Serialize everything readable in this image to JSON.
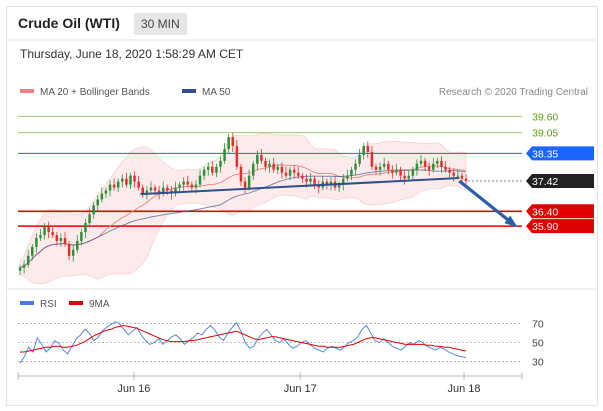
{
  "header": {
    "title": "Crude Oil (WTI)",
    "timeframe": "30 MIN",
    "datetime": "Thursday, June 18, 2020 1:58:29 AM CET"
  },
  "chart_data": {
    "type": "candlestick",
    "main": {
      "legend": [
        {
          "name": "MA 20 + Bollinger Bands",
          "color": "#f08080"
        },
        {
          "name": "MA 50",
          "color": "#2f4f8f"
        }
      ],
      "credit": "Research © 2020 Trading Central",
      "ylim": [
        33.95,
        40.15
      ],
      "levels": [
        {
          "value": 39.6,
          "label": "39.60",
          "color": "#9acd6a",
          "text_color": "#5a9e1a",
          "badge": false
        },
        {
          "value": 39.05,
          "label": "39.05",
          "color": "#9acd6a",
          "text_color": "#5a9e1a",
          "badge": false
        },
        {
          "value": 38.35,
          "label": "38.35",
          "color": "#1a66ff",
          "text_color": "#ffffff",
          "badge": true
        },
        {
          "value": 36.4,
          "label": "36.40",
          "color": "#e00000",
          "text_color": "#ffffff",
          "badge": true
        },
        {
          "value": 35.9,
          "label": "35.90",
          "color": "#e00000",
          "text_color": "#ffffff",
          "badge": true
        }
      ],
      "last_price": {
        "value": 37.42,
        "label": "37.42"
      },
      "trendline": [
        [
          0.27,
          36.98
        ],
        [
          0.985,
          37.52
        ]
      ],
      "forecast_arrow": [
        [
          0.985,
          37.42
        ],
        [
          1.11,
          35.92
        ]
      ],
      "close": [
        34.5,
        34.6,
        34.9,
        35.2,
        35.5,
        35.6,
        35.9,
        35.7,
        35.6,
        35.4,
        35.5,
        35.3,
        34.9,
        35.1,
        35.4,
        35.7,
        36.0,
        36.3,
        36.6,
        36.8,
        37.0,
        37.1,
        37.3,
        37.2,
        37.4,
        37.5,
        37.3,
        37.6,
        37.4,
        37.2,
        37.0,
        37.1,
        37.2,
        37.1,
        37.0,
        37.2,
        37.1,
        37.0,
        37.2,
        37.3,
        37.4,
        37.3,
        37.2,
        37.3,
        37.6,
        37.8,
        37.9,
        37.7,
        37.9,
        38.1,
        38.5,
        38.9,
        38.6,
        37.9,
        37.4,
        37.2,
        37.6,
        38.0,
        38.3,
        38.1,
        37.9,
        38.0,
        37.8,
        37.9,
        37.7,
        37.6,
        37.8,
        37.7,
        37.6,
        37.5,
        37.4,
        37.5,
        37.3,
        37.2,
        37.4,
        37.3,
        37.4,
        37.2,
        37.3,
        37.5,
        37.6,
        37.8,
        38.0,
        38.3,
        38.6,
        38.4,
        37.9,
        37.8,
        37.9,
        38.0,
        37.8,
        37.7,
        37.8,
        37.6,
        37.5,
        37.6,
        37.8,
        38.0,
        38.1,
        37.9,
        37.8,
        38.0,
        38.1,
        37.9,
        37.8,
        37.7,
        37.6,
        37.6,
        37.5,
        37.42
      ]
    },
    "rsi": {
      "legend": [
        {
          "name": "RSI",
          "color": "#4a7adf"
        },
        {
          "name": "9MA",
          "color": "#e00000"
        }
      ],
      "ylim": [
        22,
        78
      ],
      "ticks": [
        70,
        50,
        30
      ],
      "rsi": [
        28,
        35,
        45,
        40,
        55,
        48,
        40,
        44,
        52,
        49,
        42,
        38,
        46,
        54,
        58,
        64,
        60,
        52,
        55,
        62,
        66,
        69,
        72,
        70,
        64,
        58,
        62,
        66,
        58,
        52,
        48,
        50,
        54,
        48,
        52,
        56,
        58,
        54,
        48,
        52,
        55,
        60,
        58,
        64,
        68,
        63,
        56,
        52,
        60,
        66,
        71,
        62,
        50,
        44,
        46,
        54,
        60,
        64,
        58,
        52,
        50,
        54,
        48,
        44,
        46,
        50,
        52,
        48,
        44,
        42,
        40,
        44,
        46,
        44,
        42,
        46,
        50,
        52,
        56,
        64,
        68,
        60,
        52,
        50,
        54,
        50,
        46,
        44,
        42,
        46,
        50,
        48,
        52,
        50,
        46,
        44,
        42,
        45,
        43,
        40,
        38,
        36,
        35,
        34
      ],
      "ma9": [
        40,
        40,
        41,
        42,
        43,
        44,
        45,
        45,
        46,
        46,
        45,
        45,
        46,
        47,
        49,
        51,
        54,
        57,
        59,
        61,
        63,
        64,
        66,
        67,
        68,
        67,
        66,
        65,
        63,
        61,
        59,
        57,
        55,
        53,
        52,
        51,
        51,
        51,
        51,
        52,
        52,
        53,
        54,
        55,
        56,
        57,
        58,
        59,
        60,
        61,
        62,
        60,
        58,
        56,
        54,
        53,
        54,
        55,
        56,
        56,
        55,
        54,
        53,
        52,
        51,
        50,
        49,
        48,
        47,
        46,
        46,
        45,
        45,
        45,
        45,
        46,
        47,
        48,
        50,
        52,
        54,
        55,
        55,
        54,
        53,
        52,
        51,
        50,
        49,
        48,
        48,
        48,
        48,
        48,
        47,
        47,
        46,
        46,
        45,
        45,
        44,
        43,
        42,
        41
      ]
    },
    "x_ticks": [
      {
        "label": "Jun 16",
        "pos": 0.23
      },
      {
        "label": "Jun 17",
        "pos": 0.56
      },
      {
        "label": "Jun 18",
        "pos": 0.885
      }
    ]
  }
}
